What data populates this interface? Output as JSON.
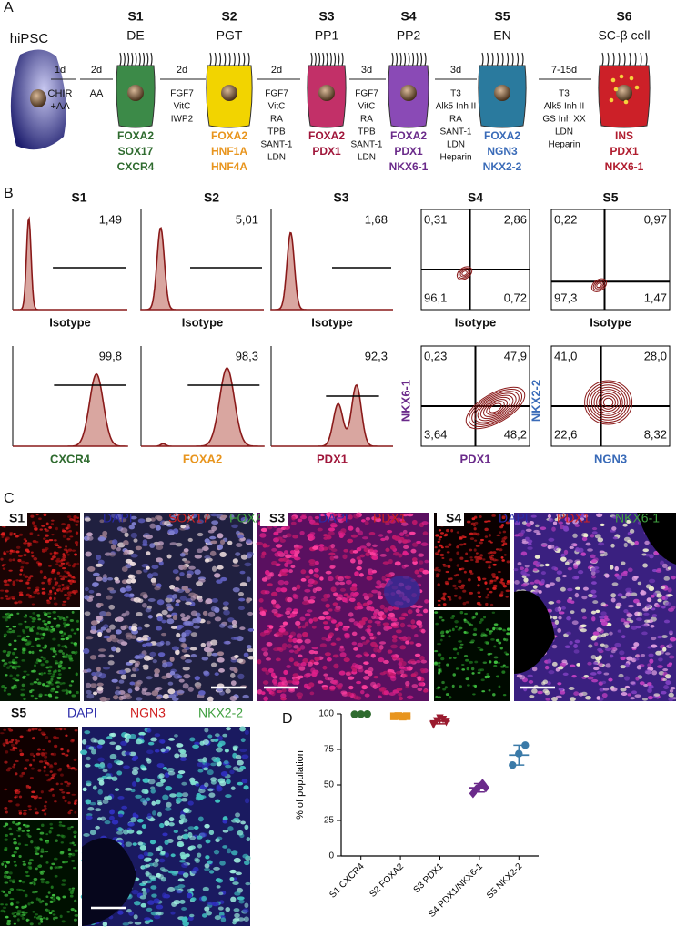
{
  "panel_labels": [
    "A",
    "B",
    "C",
    "D"
  ],
  "panel_a": {
    "origin": "hiPSC",
    "stages": [
      {
        "id": "S1",
        "name": "DE",
        "markers": [
          "FOXA2",
          "SOX17",
          "CXCR4"
        ]
      },
      {
        "id": "S2",
        "name": "PGT",
        "markers": [
          "FOXA2",
          "HNF1A",
          "HNF4A"
        ]
      },
      {
        "id": "S3",
        "name": "PP1",
        "markers": [
          "FOXA2",
          "PDX1"
        ]
      },
      {
        "id": "S4",
        "name": "PP2",
        "markers": [
          "FOXA2",
          "PDX1",
          "NKX6-1"
        ]
      },
      {
        "id": "S5",
        "name": "EN",
        "markers": [
          "FOXA2",
          "NGN3",
          "NKX2-2"
        ]
      },
      {
        "id": "S6",
        "name": "SC-β cell",
        "markers": [
          "INS",
          "PDX1",
          "NKX6-1"
        ]
      }
    ],
    "transitions": [
      {
        "duration": "1d",
        "factors": [
          "CHIR",
          "+AA"
        ]
      },
      {
        "duration": "2d",
        "factors": [
          "AA"
        ]
      },
      {
        "duration": "2d",
        "factors": [
          "FGF7",
          "VitC",
          "IWP2"
        ]
      },
      {
        "duration": "2d",
        "factors": [
          "FGF7",
          "VitC",
          "RA",
          "TPB",
          "SANT-1",
          "LDN"
        ]
      },
      {
        "duration": "3d",
        "factors": [
          "FGF7",
          "VitC",
          "RA",
          "TPB",
          "SANT-1",
          "LDN"
        ]
      },
      {
        "duration": "3d",
        "factors": [
          "T3",
          "Alk5 Inh II",
          "RA",
          "SANT-1",
          "LDN",
          "Heparin"
        ]
      },
      {
        "duration": "7-15d",
        "factors": [
          "T3",
          "Alk5 Inh II",
          "GS Inh XX",
          "LDN",
          "Heparin"
        ]
      }
    ]
  },
  "panel_b": {
    "histograms": [
      {
        "stage": "S1",
        "isotype_label": "Isotype",
        "isotype_value": "1,49",
        "marker": "CXCR4",
        "marker_value": "99,8"
      },
      {
        "stage": "S2",
        "isotype_label": "Isotype",
        "isotype_value": "5,01",
        "marker": "FOXA2",
        "marker_value": "98,3"
      },
      {
        "stage": "S3",
        "isotype_label": "Isotype",
        "isotype_value": "1,68",
        "marker": "PDX1",
        "marker_value": "92,3"
      }
    ],
    "quadrants": [
      {
        "stage": "S4",
        "y_marker": "NKX6-1",
        "x_marker": "PDX1",
        "isotype_label": "Isotype",
        "isotype_values": [
          "0,31",
          "2,86",
          "96,1",
          "0,72"
        ],
        "values": [
          "0,23",
          "47,9",
          "3,64",
          "48,2"
        ]
      },
      {
        "stage": "S5",
        "y_marker": "NKX2-2",
        "x_marker": "NGN3",
        "isotype_label": "Isotype",
        "isotype_values": [
          "0,22",
          "0,97",
          "97,3",
          "1,47"
        ],
        "values": [
          "41,0",
          "28,0",
          "22,6",
          "8,32"
        ]
      }
    ]
  },
  "panel_c": [
    {
      "stage": "S1",
      "stains": [
        "DAPI",
        "SOX17",
        "FOXA2"
      ]
    },
    {
      "stage": "S3",
      "stains": [
        "DAPI",
        "PDX1"
      ]
    },
    {
      "stage": "S4",
      "stains": [
        "DAPI",
        "PDX1",
        "NKX6-1"
      ]
    },
    {
      "stage": "S5",
      "stains": [
        "DAPI",
        "NGN3",
        "NKX2-2"
      ]
    }
  ],
  "chart_data": {
    "type": "dot",
    "y_label": "% of population",
    "categories": [
      "S1 CXCR4",
      "S2 FOXA2",
      "S3 PDX1",
      "S4 PDX1/NKX6-1",
      "S5 NKX2-2"
    ],
    "groups": [
      {
        "color": "#2f6b2f",
        "marker": "circle",
        "values": [
          99.7,
          99.8,
          99.9
        ],
        "mean": 99.8,
        "sd": 0.1
      },
      {
        "color": "#e8951e",
        "marker": "square",
        "values": [
          98.3,
          98.5,
          98.1,
          98.4
        ],
        "mean": 98.3,
        "sd": 0.2
      },
      {
        "color": "#9a1a2e",
        "marker": "triangle",
        "values": [
          92,
          95,
          97,
          96,
          94
        ],
        "mean": 95,
        "sd": 2
      },
      {
        "color": "#6a2a8a",
        "marker": "diamond",
        "values": [
          44,
          47,
          49,
          51,
          48
        ],
        "mean": 48,
        "sd": 3
      },
      {
        "color": "#3a7aa8",
        "marker": "circle",
        "values": [
          64,
          72,
          78
        ],
        "mean": 71,
        "sd": 7
      }
    ],
    "ylim": [
      0,
      100
    ],
    "yticks": [
      0,
      25,
      50,
      75,
      100
    ]
  }
}
